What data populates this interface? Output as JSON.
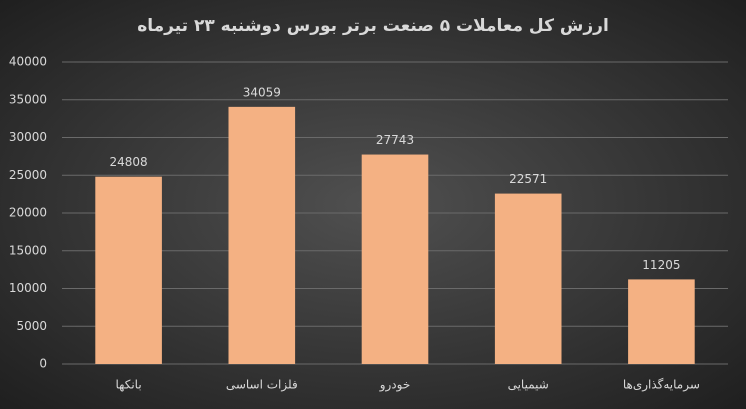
{
  "chart_data": {
    "type": "bar",
    "title": "ارزش کل معاملات ۵ صنعت برتر بورس دوشنبه ۲۳ تیرماه",
    "categories": [
      "بانکها",
      "فلزات اساسی",
      "خودرو",
      "شیمیایی",
      "سرمایه‌گذاری‌ها"
    ],
    "values": [
      24808,
      34059,
      27743,
      22571,
      11205
    ],
    "color": "#f4b183",
    "ylim": [
      0,
      40000
    ],
    "yticks": [
      0,
      5000,
      10000,
      15000,
      20000,
      25000,
      30000,
      35000,
      40000
    ],
    "grid": true
  }
}
